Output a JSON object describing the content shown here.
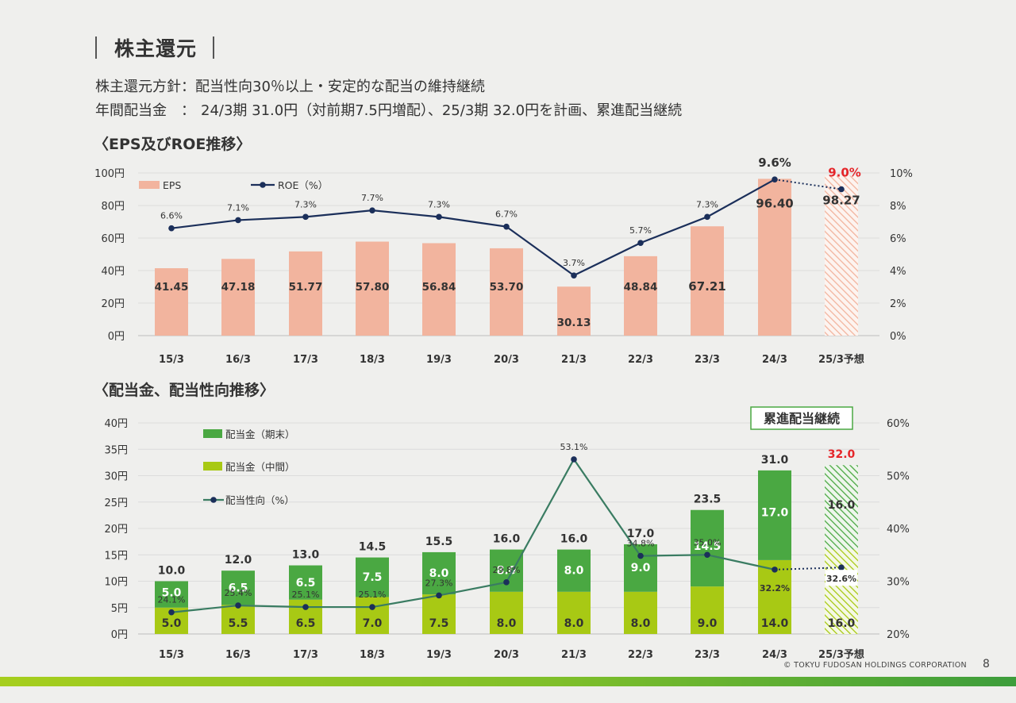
{
  "title": "株主還元",
  "policy": {
    "line1_label": "株主還元方針：",
    "line1_text": "配当性向30％以上・安定的な配当の維持継続",
    "line2_label": "年間配当金　：",
    "line2_text": "24/3期 31.0円（対前期7.5円増配）、25/3期 32.0円を計画、累進配当継続"
  },
  "section1_title": "〈EPS及びROE推移〉",
  "section2_title": "〈配当金、配当性向推移〉",
  "footer": {
    "copyright": "© TOKYU FUDOSAN HOLDINGS CORPORATION",
    "page": "8"
  },
  "colors": {
    "eps_bar": "#f2b49e",
    "roe_line": "#1b2f5a",
    "forecast_red": "#e5262a",
    "div_year_end": "#4aa842",
    "div_interim": "#a8c914",
    "payout_line": "#3a7c62",
    "footer_band_left": "#a6ce1e",
    "footer_band_right": "#3d9d3c"
  },
  "chart_data": [
    {
      "type": "bar",
      "title": "〈EPS及びROE推移〉",
      "categories": [
        "15/3",
        "16/3",
        "17/3",
        "18/3",
        "19/3",
        "20/3",
        "21/3",
        "22/3",
        "23/3",
        "24/3",
        "25/3予想"
      ],
      "series": [
        {
          "name": "EPS",
          "kind": "bar",
          "axis": "left",
          "values": [
            41.45,
            47.18,
            51.77,
            57.8,
            56.84,
            53.7,
            30.13,
            48.84,
            67.21,
            96.4,
            98.27
          ],
          "labels": [
            "41.45",
            "47.18",
            "51.77",
            "57.80",
            "56.84",
            "53.70",
            "30.13",
            "48.84",
            "67.21",
            "96.40",
            "98.27"
          ]
        },
        {
          "name": "ROE（%）",
          "kind": "line",
          "axis": "right",
          "values": [
            6.6,
            7.1,
            7.3,
            7.7,
            7.3,
            6.7,
            3.7,
            5.7,
            7.3,
            9.6,
            9.0
          ],
          "labels": [
            "6.6%",
            "7.1%",
            "7.3%",
            "7.7%",
            "7.3%",
            "6.7%",
            "3.7%",
            "5.7%",
            "7.3%",
            "9.6%",
            "9.0%"
          ]
        }
      ],
      "forecast_index": 10,
      "y_left": {
        "min": 0,
        "max": 100,
        "ticks": [
          "0円",
          "20円",
          "40円",
          "60円",
          "80円",
          "100円"
        ]
      },
      "y_right": {
        "min": 0,
        "max": 10,
        "ticks": [
          "0%",
          "2%",
          "4%",
          "6%",
          "8%",
          "10%"
        ]
      },
      "legend": [
        "EPS",
        "ROE（%）"
      ],
      "legend_position": "top-left"
    },
    {
      "type": "bar",
      "stacked": true,
      "title": "〈配当金、配当性向推移〉",
      "categories": [
        "15/3",
        "16/3",
        "17/3",
        "18/3",
        "19/3",
        "20/3",
        "21/3",
        "22/3",
        "23/3",
        "24/3",
        "25/3予想"
      ],
      "series": [
        {
          "name": "配当金（中間）",
          "kind": "bar",
          "axis": "left",
          "values": [
            5.0,
            5.5,
            6.5,
            7.0,
            7.5,
            8.0,
            8.0,
            8.0,
            9.0,
            14.0,
            16.0
          ],
          "labels": [
            "5.0",
            "5.5",
            "6.5",
            "7.0",
            "7.5",
            "8.0",
            "8.0",
            "8.0",
            "9.0",
            "14.0",
            "16.0"
          ]
        },
        {
          "name": "配当金（期末）",
          "kind": "bar",
          "axis": "left",
          "values": [
            5.0,
            6.5,
            6.5,
            7.5,
            8.0,
            8.0,
            8.0,
            9.0,
            14.5,
            17.0,
            16.0
          ],
          "labels": [
            "5.0",
            "6.5",
            "6.5",
            "7.5",
            "8.0",
            "8.0",
            "8.0",
            "9.0",
            "14.5",
            "17.0",
            "16.0"
          ]
        },
        {
          "name": "配当性向（%）",
          "kind": "line",
          "axis": "right",
          "values": [
            24.1,
            25.4,
            25.1,
            25.1,
            27.3,
            29.8,
            53.1,
            34.8,
            35.0,
            32.2,
            32.6
          ],
          "labels": [
            "24.1%",
            "25.4%",
            "25.1%",
            "25.1%",
            "27.3%",
            "29.8%",
            "53.1%",
            "34.8%",
            "35.0%",
            "32.2%",
            "32.6%"
          ]
        }
      ],
      "totals": [
        "10.0",
        "12.0",
        "13.0",
        "14.5",
        "15.5",
        "16.0",
        "16.0",
        "17.0",
        "23.5",
        "31.0",
        "32.0"
      ],
      "forecast_index": 10,
      "y_left": {
        "min": 0,
        "max": 40,
        "ticks": [
          "0円",
          "5円",
          "10円",
          "15円",
          "20円",
          "25円",
          "30円",
          "35円",
          "40円"
        ]
      },
      "y_right": {
        "min": 20,
        "max": 60,
        "ticks": [
          "20%",
          "30%",
          "40%",
          "50%",
          "60%"
        ]
      },
      "legend": [
        "配当金（期末）",
        "配当金（中間）",
        "配当性向（%）"
      ],
      "legend_position": "top-left",
      "annotation": "累進配当継続"
    }
  ]
}
